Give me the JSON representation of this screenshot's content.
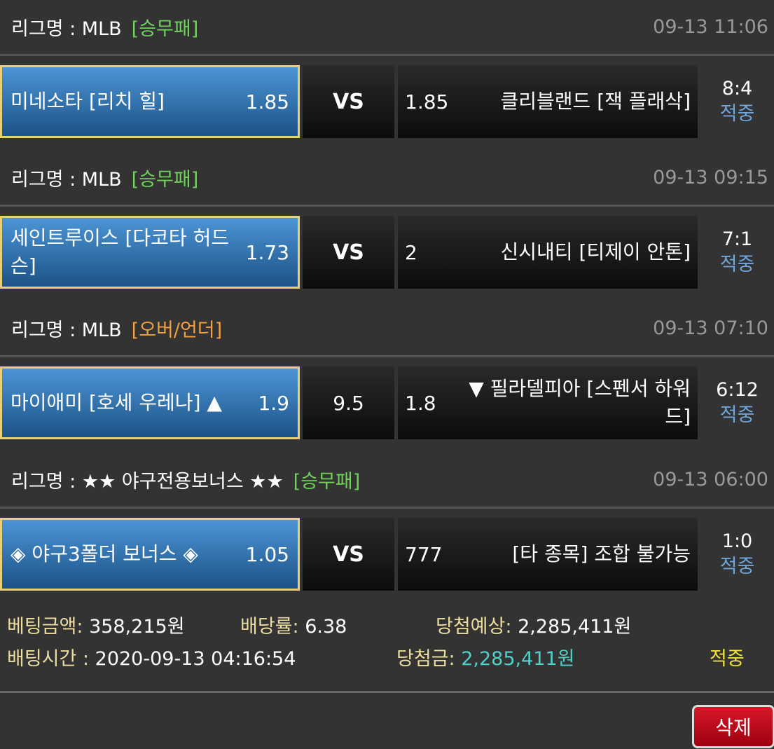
{
  "bets": [
    {
      "league_label": "리그명 : MLB",
      "type": "[승무패]",
      "type_color": "#6fd35a",
      "time": "09-13 11:06",
      "home": "미네소타 [리치 힐]",
      "home_odds": "1.85",
      "mid": "VS",
      "away_odds": "1.85",
      "away": "클리블랜드 [잭 플래삭]",
      "score": "8:4",
      "result": "적중"
    },
    {
      "league_label": "리그명 : MLB",
      "type": "[승무패]",
      "type_color": "#6fd35a",
      "time": "09-13 09:15",
      "home": "세인트루이스 [다코타 허드슨]",
      "home_odds": "1.73",
      "mid": "VS",
      "away_odds": "2",
      "away": "신시내티 [티제이 안톤]",
      "score": "7:1",
      "result": "적중"
    },
    {
      "league_label": "리그명 : MLB",
      "type": "[오버/언더]",
      "type_color": "#f0a040",
      "time": "09-13 07:10",
      "home": "마이애미 [호세 우레나] ▲",
      "home_odds": "1.9",
      "mid": "9.5",
      "away_odds": "1.8",
      "away": "▼ 필라델피아 [스펜서 하워드]",
      "score": "6:12",
      "result": "적중"
    },
    {
      "league_label": "리그명 : ★★ 야구전용보너스 ★★",
      "type": "[승무패]",
      "type_color": "#6fd35a",
      "time": "09-13 06:00",
      "home": "◈ 야구3폴더 보너스 ◈",
      "home_odds": "1.05",
      "mid": "VS",
      "away_odds": "777",
      "away": "[타 종목] 조합 불가능",
      "score": "1:0",
      "result": "적중"
    }
  ],
  "summary": {
    "amount_label": "베팅금액:",
    "amount": "358,215원",
    "rate_label": "배당률:",
    "rate": "6.38",
    "expected_label": "당첨예상:",
    "expected": "2,285,411원",
    "time_label": "배팅시간 :",
    "time": "2020-09-13 04:16:54",
    "win_label": "당첨금:",
    "win": "2,285,411원",
    "status": "적중"
  },
  "delete_label": "삭제"
}
